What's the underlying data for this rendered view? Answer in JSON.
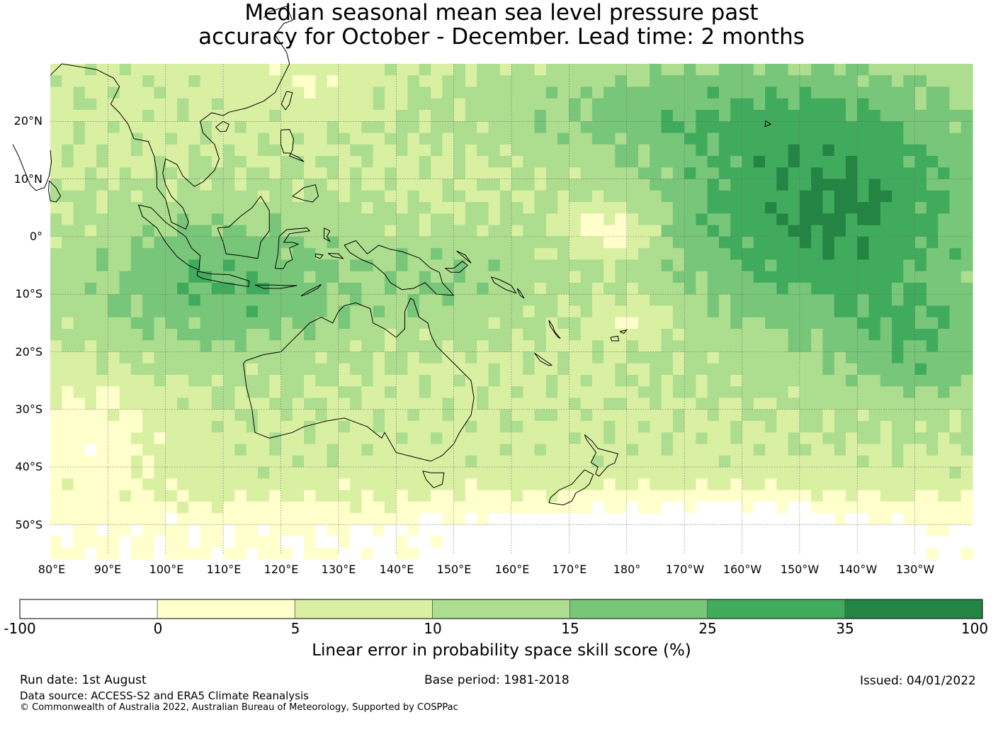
{
  "title_line1": "Median seasonal mean sea level pressure past",
  "title_line2": "accuracy for October - December. Lead time: 2 months",
  "lat_labels": [
    "20°N",
    "10°N",
    "0°",
    "10°S",
    "20°S",
    "30°S",
    "40°S",
    "50°S"
  ],
  "lon_labels": [
    "80°E",
    "90°E",
    "100°E",
    "110°E",
    "120°E",
    "130°E",
    "140°E",
    "150°E",
    "160°E",
    "170°E",
    "180°",
    "170°W",
    "160°W",
    "150°W",
    "140°W",
    "130°W"
  ],
  "colorbar": {
    "ticks": [
      "-100",
      "0",
      "5",
      "10",
      "15",
      "25",
      "35",
      "100"
    ],
    "colors": [
      "#ffffff",
      "#ffffcc",
      "#d9f0a3",
      "#addd8e",
      "#78c679",
      "#41ab5d",
      "#238443"
    ],
    "label": "Linear error in probability space skill score (%)"
  },
  "footer": {
    "run_date": "Run date: 1st August",
    "base_period": "Base period: 1981-2018",
    "issued": "Issued: 04/01/2022",
    "data_source": "Data source: ACCESS-S2 and ERA5 Climate Reanalysis",
    "copyright": "© Commonwealth of Australia 2022, Australian Bureau of Meteorology, Supported by COSPPac"
  },
  "map": {
    "lon_range": [
      80,
      240
    ],
    "lat_range": [
      -55,
      30
    ],
    "grid_lons": [
      80,
      90,
      100,
      110,
      120,
      130,
      140,
      150,
      160,
      170,
      180,
      190,
      200,
      210,
      220,
      230
    ],
    "grid_lats": [
      20,
      10,
      0,
      -10,
      -20,
      -30,
      -40,
      -50
    ]
  }
}
